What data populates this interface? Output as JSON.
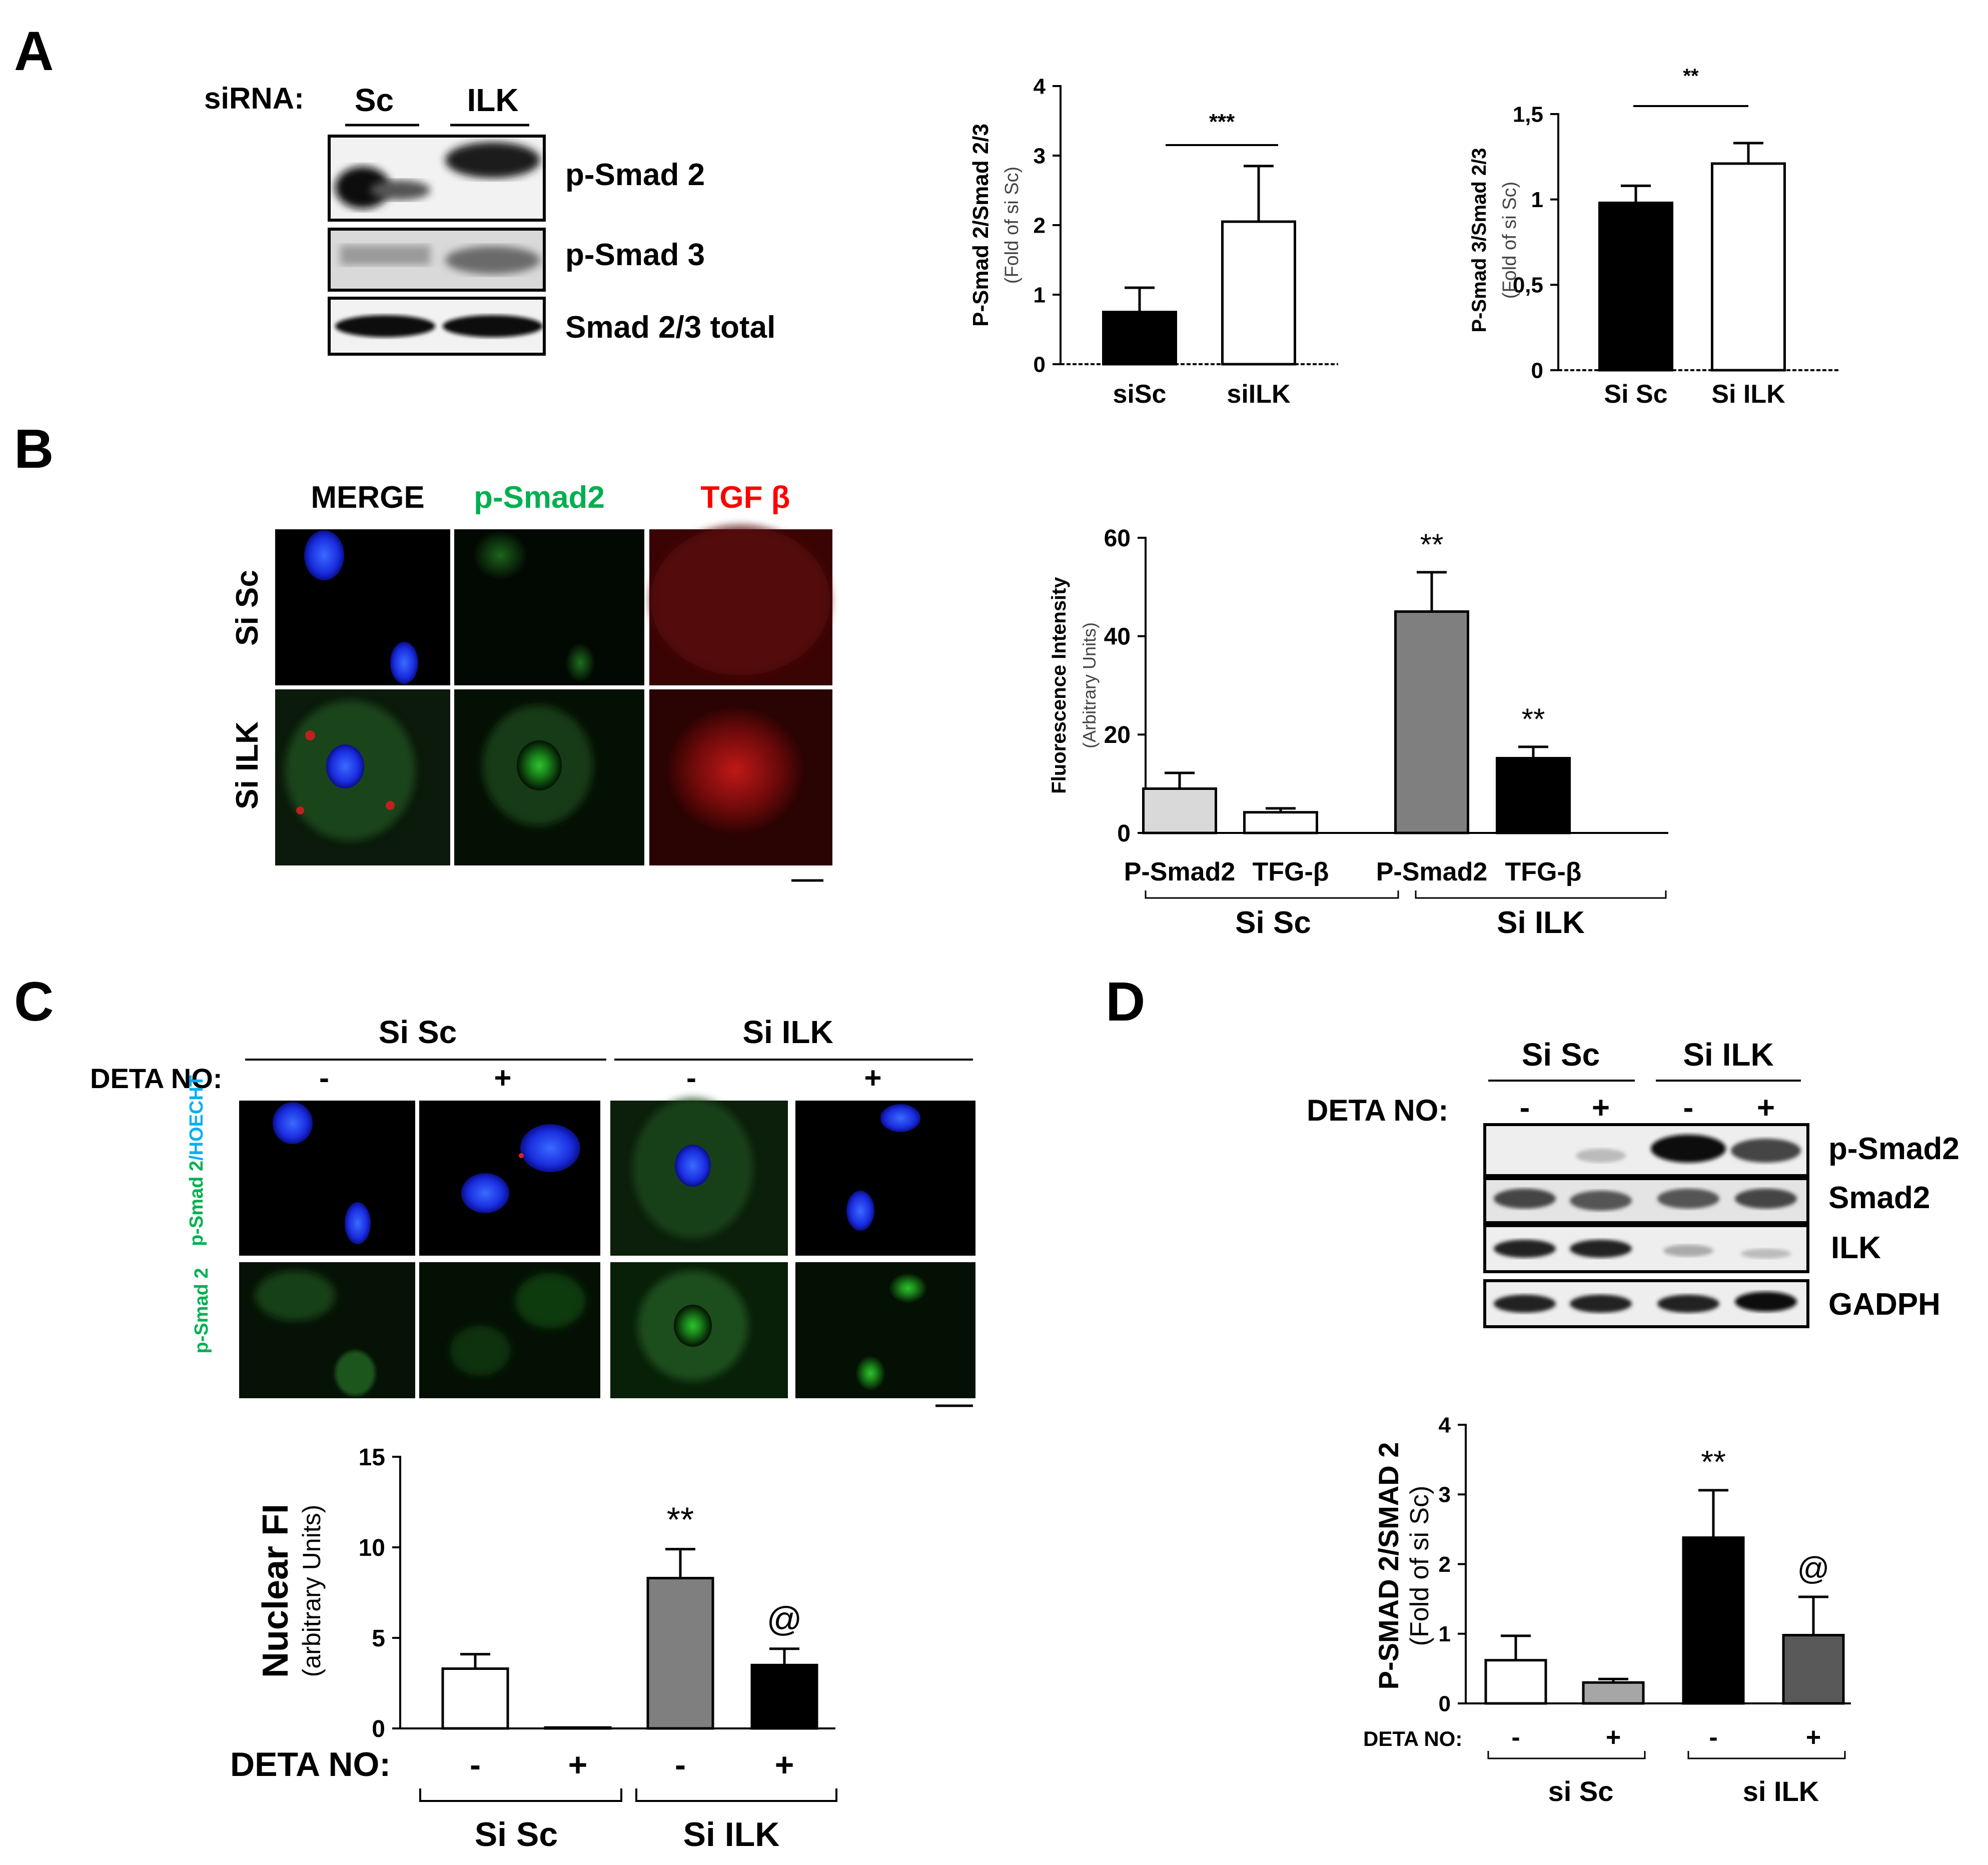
{
  "panels": {
    "A": {
      "letter": "A",
      "blot": {
        "sirna_label": "siRNA:",
        "lanes": [
          "Sc",
          "ILK"
        ],
        "bands": [
          "p-Smad 2",
          "p-Smad 3",
          "Smad 2/3 total"
        ]
      }
    },
    "B": {
      "letter": "B",
      "columns": [
        {
          "label": "MERGE",
          "color": "#000000"
        },
        {
          "label": "p-Smad2",
          "color": "#00b050"
        },
        {
          "label": "TGF β",
          "color": "#ff0000"
        }
      ],
      "rows": [
        "Si Sc",
        "Si ILK"
      ]
    },
    "C": {
      "letter": "C",
      "groups": [
        "Si Sc",
        "Si ILK"
      ],
      "deta_label": "DETA NO:",
      "deta_signs": [
        "-",
        "+",
        "-",
        "+"
      ],
      "row_labels": {
        "row1_green": "p-Smad 2",
        "row1_blue": "/HOECHT",
        "row2": "p-Smad 2"
      },
      "axis_deta_label": "DETA NO:",
      "axis_deta_signs": [
        "-",
        "+",
        "-",
        "+"
      ],
      "axis_groups": [
        "Si Sc",
        "Si ILK"
      ]
    },
    "D": {
      "letter": "D",
      "groups": [
        "Si Sc",
        "Si ILK"
      ],
      "deta_label": "DETA NO:",
      "deta_signs": [
        "-",
        "+",
        "-",
        "+"
      ],
      "bands": [
        "p-Smad2",
        "Smad2",
        "ILK",
        "GADPH"
      ],
      "axis_deta_label": "DETA NO:",
      "axis_deta_signs": [
        "-",
        "+",
        "-",
        "+"
      ],
      "axis_groups": [
        "si Sc",
        "si ILK"
      ]
    }
  },
  "chart_data": [
    {
      "id": "A1",
      "type": "bar",
      "categories": [
        "siSc",
        "siILK"
      ],
      "values": [
        0.75,
        2.05
      ],
      "errors": [
        0.35,
        0.8
      ],
      "colors": [
        "#000000",
        "#ffffff"
      ],
      "ylim": [
        0,
        4
      ],
      "yticks": [
        "0",
        "1",
        "2",
        "3",
        "4"
      ],
      "ylabel": "P-Smad 2/Smad 2/3",
      "ylabel_sub": "(Fold of si Sc)",
      "significance": "***",
      "grid": false
    },
    {
      "id": "A2",
      "type": "bar",
      "categories": [
        "Si Sc",
        "Si ILK"
      ],
      "values": [
        0.98,
        1.21
      ],
      "errors": [
        0.1,
        0.12
      ],
      "colors": [
        "#000000",
        "#ffffff"
      ],
      "ylim": [
        0,
        1.5
      ],
      "yticks": [
        "0",
        "0,5",
        "1",
        "1,5"
      ],
      "ylabel": "P-Smad 3/Smad 2/3",
      "ylabel_sub": "(Fold of si Sc)",
      "significance": "**",
      "grid": false
    },
    {
      "id": "B",
      "type": "bar",
      "categories": [
        "P-Smad2",
        "TFG-β",
        "P-Smad2",
        "TFG-β"
      ],
      "groups": [
        "Si Sc",
        "Si ILK"
      ],
      "values": [
        9,
        4.2,
        45,
        15.2
      ],
      "errors": [
        3.2,
        0.8,
        8,
        2.3
      ],
      "colors": [
        "#d9d9d9",
        "#ffffff",
        "#7f7f7f",
        "#000000"
      ],
      "labels_above": [
        "",
        "",
        "**",
        "**"
      ],
      "ylim": [
        0,
        60
      ],
      "yticks": [
        "0",
        "20",
        "40",
        "60"
      ],
      "ylabel": "Fluorescence Intensity",
      "ylabel_sub": "(Arbitrary Units)",
      "grid": false
    },
    {
      "id": "C",
      "type": "bar",
      "categories": [
        "-",
        "+",
        "-",
        "+"
      ],
      "groups": [
        "Si Sc",
        "Si ILK"
      ],
      "values": [
        3.3,
        0.05,
        8.3,
        3.5
      ],
      "errors": [
        0.8,
        0,
        1.6,
        0.9
      ],
      "colors": [
        "#ffffff",
        "#ffffff",
        "#7f7f7f",
        "#000000"
      ],
      "labels_above": [
        "",
        "",
        "**",
        "@"
      ],
      "ylim": [
        0,
        15
      ],
      "yticks": [
        "0",
        "5",
        "10",
        "15"
      ],
      "ylabel": "Nuclear FI",
      "ylabel_sub": "(arbitrary Units)",
      "grid": false
    },
    {
      "id": "D",
      "type": "bar",
      "categories": [
        "-",
        "+",
        "-",
        "+"
      ],
      "groups": [
        "si Sc",
        "si ILK"
      ],
      "values": [
        0.62,
        0.3,
        2.38,
        0.98
      ],
      "errors": [
        0.35,
        0.05,
        0.68,
        0.55
      ],
      "colors": [
        "#ffffff",
        "#a6a6a6",
        "#000000",
        "#595959"
      ],
      "labels_above": [
        "",
        "",
        "**",
        "@"
      ],
      "ylim": [
        0,
        4
      ],
      "yticks": [
        "0",
        "1",
        "2",
        "3",
        "4"
      ],
      "ylabel": "P-SMAD 2/SMAD 2",
      "ylabel_sub": "(Fold of si Sc)",
      "grid": false
    }
  ]
}
